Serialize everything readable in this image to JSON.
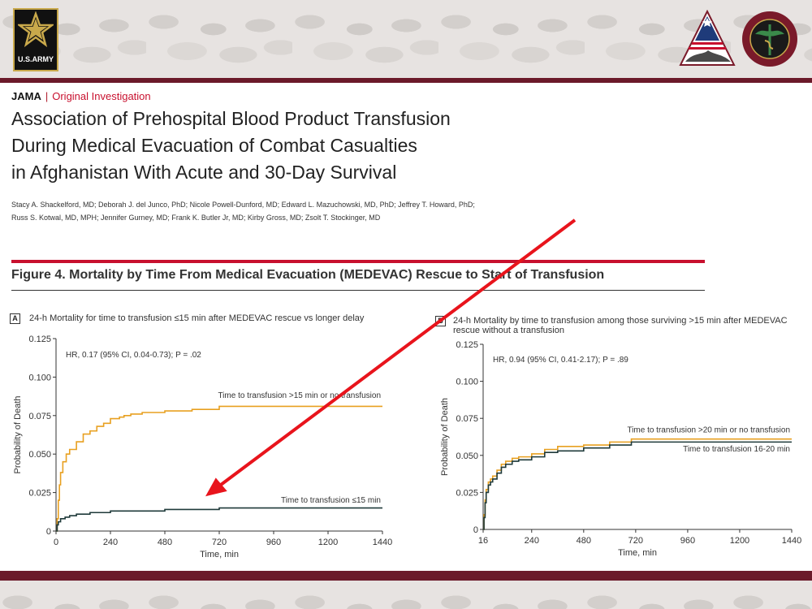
{
  "header": {
    "journal": "JAMA",
    "separator": "|",
    "article_type": "Original Investigation",
    "title_lines": [
      "Association of Prehospital Blood Product Transfusion",
      "During Medical Evacuation of Combat Casualties",
      "in Afghanistan With Acute and 30-Day Survival"
    ],
    "author_lines": [
      "Stacy A. Shackelford, MD; Deborah J. del Junco, PhD; Nicole Powell-Dunford, MD; Edward L. Mazuchowski, MD, PhD; Jeffrey T. Howard, PhD;",
      "Russ S. Kotwal, MD, MPH; Jennifer Gurney, MD; Frank K. Butler Jr, MD; Kirby Gross, MD; Zsolt T. Stockinger, MD"
    ]
  },
  "logos": {
    "army_text": "U.S.ARMY"
  },
  "figure": {
    "title": "Figure 4. Mortality by Time From Medical Evacuation (MEDEVAC) Rescue to Start of Transfusion"
  },
  "colors": {
    "maroon": "#6b1a2a",
    "accent_red": "#c8102e",
    "arrow": "#e8141c",
    "orange_series": "#e8a020",
    "dark_series": "#1f3a3a"
  },
  "chart_data": [
    {
      "panel": "A",
      "type": "line",
      "caption": "24-h Mortality for time to transfusion ≤15 min after MEDEVAC rescue vs longer delay",
      "annotation": "HR, 0.17 (95% CI, 0.04-0.73); P = .02",
      "xlabel": "Time, min",
      "ylabel": "Probability of Death",
      "xlim": [
        0,
        1440
      ],
      "ylim": [
        0,
        0.125
      ],
      "xticks": [
        "0",
        "240",
        "480",
        "720",
        "960",
        "1200",
        "1440"
      ],
      "yticks": [
        "0",
        "0.025",
        "0.050",
        "0.075",
        "0.100",
        "0.125"
      ],
      "grid": false,
      "step": true,
      "series": [
        {
          "name": "Time to transfusion >15 min or no transfusion",
          "color": "#e8a020",
          "x": [
            0,
            5,
            10,
            15,
            20,
            30,
            45,
            60,
            90,
            120,
            150,
            180,
            210,
            240,
            280,
            300,
            330,
            380,
            480,
            600,
            700,
            720,
            1000,
            1440
          ],
          "y": [
            0,
            0.008,
            0.02,
            0.03,
            0.038,
            0.045,
            0.05,
            0.053,
            0.058,
            0.063,
            0.065,
            0.068,
            0.07,
            0.073,
            0.074,
            0.075,
            0.076,
            0.077,
            0.078,
            0.079,
            0.079,
            0.081,
            0.081,
            0.081
          ]
        },
        {
          "name": "Time to transfusion ≤15 min",
          "color": "#1f3a3a",
          "x": [
            0,
            5,
            10,
            20,
            40,
            60,
            90,
            150,
            240,
            360,
            480,
            600,
            700,
            720,
            1000,
            1440
          ],
          "y": [
            0,
            0.004,
            0.006,
            0.008,
            0.009,
            0.01,
            0.011,
            0.012,
            0.013,
            0.013,
            0.014,
            0.014,
            0.014,
            0.015,
            0.015,
            0.015
          ]
        }
      ]
    },
    {
      "panel": "B",
      "type": "line",
      "caption": "24-h Mortality by time to transfusion among those surviving >15 min after MEDEVAC rescue without a transfusion",
      "annotation": "HR, 0.94 (95% CI, 0.41-2.17); P = .89",
      "xlabel": "Time, min",
      "ylabel": "Probability of Death",
      "xlim": [
        16,
        1440
      ],
      "ylim": [
        0,
        0.125
      ],
      "xticks": [
        "16",
        "240",
        "480",
        "720",
        "960",
        "1200",
        "1440"
      ],
      "yticks": [
        "0",
        "0.025",
        "0.050",
        "0.075",
        "0.100",
        "0.125"
      ],
      "grid": false,
      "step": true,
      "series": [
        {
          "name": "Time to transfusion >20 min or no transfusion",
          "color": "#e8a020",
          "x": [
            16,
            20,
            25,
            30,
            40,
            50,
            60,
            80,
            100,
            120,
            150,
            180,
            240,
            300,
            360,
            480,
            600,
            700,
            1440
          ],
          "y": [
            0,
            0.01,
            0.02,
            0.027,
            0.032,
            0.034,
            0.036,
            0.04,
            0.044,
            0.046,
            0.048,
            0.049,
            0.051,
            0.054,
            0.056,
            0.057,
            0.059,
            0.061,
            0.061
          ]
        },
        {
          "name": "Time to transfusion 16-20 min",
          "color": "#1f3a3a",
          "x": [
            16,
            20,
            25,
            30,
            40,
            50,
            60,
            80,
            100,
            120,
            150,
            180,
            240,
            300,
            360,
            480,
            600,
            700,
            1440
          ],
          "y": [
            0,
            0.008,
            0.018,
            0.025,
            0.03,
            0.032,
            0.034,
            0.038,
            0.042,
            0.044,
            0.046,
            0.047,
            0.049,
            0.052,
            0.053,
            0.055,
            0.057,
            0.059,
            0.059
          ]
        }
      ]
    }
  ]
}
